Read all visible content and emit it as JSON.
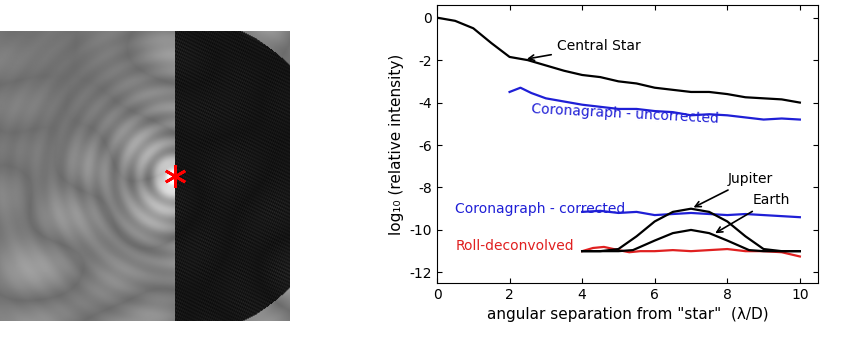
{
  "chart_data": {
    "type": "line",
    "xlabel": "angular separation from \"star\"  (λ/D)",
    "ylabel": "log₁₀ (relative intensity)",
    "xlim": [
      0,
      10.5
    ],
    "ylim": [
      -12.5,
      0.6
    ],
    "xticks": [
      0,
      2,
      4,
      6,
      8,
      10
    ],
    "yticks": [
      -12,
      -10,
      -8,
      -6,
      -4,
      -2,
      0
    ],
    "series": [
      {
        "name": "Central Star",
        "color": "#000000",
        "x": [
          0,
          0.5,
          1,
          1.5,
          2,
          2.5,
          3,
          3.5,
          4,
          4.5,
          5,
          5.5,
          6,
          6.5,
          7,
          7.5,
          8,
          8.5,
          9,
          9.5,
          10
        ],
        "values": [
          0,
          -0.15,
          -0.5,
          -1.2,
          -1.85,
          -2.0,
          -2.25,
          -2.5,
          -2.7,
          -2.8,
          -3.0,
          -3.1,
          -3.3,
          -3.4,
          -3.5,
          -3.5,
          -3.6,
          -3.75,
          -3.8,
          -3.85,
          -4.0
        ]
      },
      {
        "name": "Coronagraph - uncorrected",
        "color": "#1f1fd6",
        "x": [
          2,
          2.3,
          2.6,
          3,
          3.5,
          4,
          4.5,
          5,
          5.5,
          6,
          6.5,
          7,
          7.5,
          8,
          8.5,
          9,
          9.5,
          10
        ],
        "values": [
          -3.5,
          -3.3,
          -3.55,
          -3.8,
          -3.95,
          -4.1,
          -4.2,
          -4.3,
          -4.3,
          -4.4,
          -4.45,
          -4.6,
          -4.55,
          -4.6,
          -4.7,
          -4.8,
          -4.75,
          -4.8
        ]
      },
      {
        "name": "Coronagraph - corrected",
        "color": "#1f1fd6",
        "x": [
          4,
          4.5,
          5,
          5.5,
          6,
          6.5,
          7,
          7.5,
          8,
          8.5,
          9,
          9.5,
          10
        ],
        "values": [
          -9.15,
          -9.1,
          -9.2,
          -9.15,
          -9.3,
          -9.25,
          -9.2,
          -9.25,
          -9.3,
          -9.25,
          -9.3,
          -9.35,
          -9.4
        ]
      },
      {
        "name": "Roll-deconvolved",
        "color": "#e02020",
        "x": [
          4,
          4.3,
          4.6,
          5,
          5.3,
          5.6,
          6,
          6.5,
          7,
          7.5,
          8,
          8.5,
          9,
          9.5,
          10
        ],
        "values": [
          -11.0,
          -10.85,
          -10.8,
          -10.95,
          -11.05,
          -11.0,
          -11.0,
          -10.95,
          -11.0,
          -10.95,
          -10.9,
          -11.0,
          -11.0,
          -11.05,
          -11.25
        ]
      },
      {
        "name": "Jupiter",
        "color": "#000000",
        "x": [
          4,
          4.5,
          5,
          5.5,
          6,
          6.5,
          7,
          7.5,
          8,
          8.5,
          9,
          9.5,
          10
        ],
        "values": [
          -11,
          -11,
          -10.9,
          -10.3,
          -9.6,
          -9.15,
          -9.0,
          -9.15,
          -9.6,
          -10.3,
          -10.9,
          -11,
          -11
        ]
      },
      {
        "name": "Earth",
        "color": "#000000",
        "x": [
          4,
          5,
          5.4,
          6,
          6.5,
          7,
          7.5,
          8,
          8.6,
          9,
          10
        ],
        "values": [
          -11,
          -11,
          -10.95,
          -10.5,
          -10.15,
          -10.0,
          -10.15,
          -10.5,
          -10.95,
          -11,
          -11
        ]
      }
    ]
  }
}
